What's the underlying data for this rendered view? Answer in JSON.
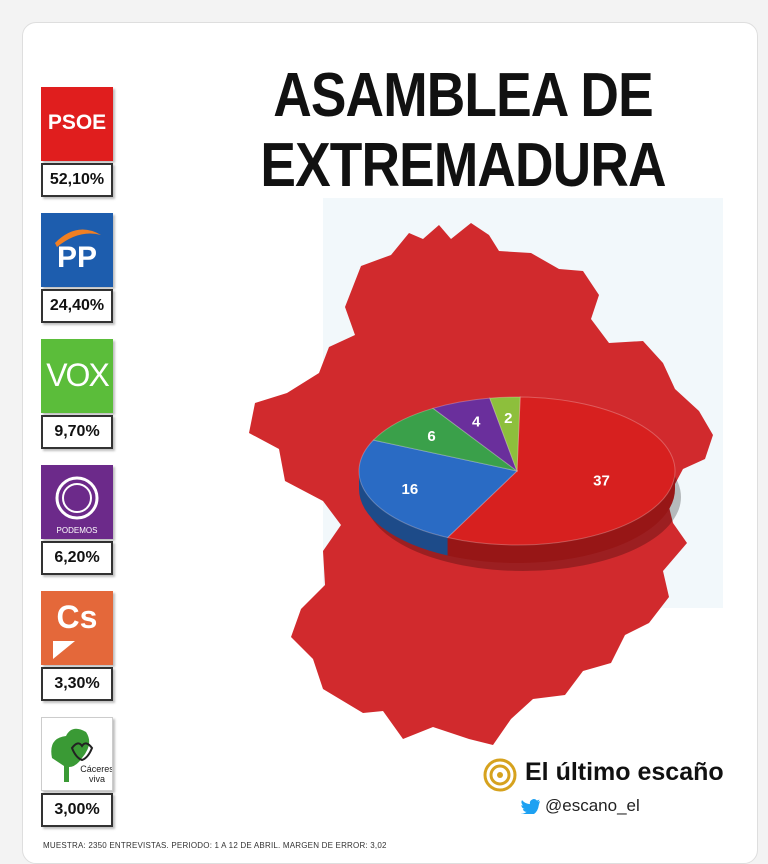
{
  "title": {
    "line1": "ASAMBLEA DE",
    "line2": "EXTREMADURA"
  },
  "parties": [
    {
      "name": "PSOE",
      "pct": "52,10%",
      "color": "#e01e1e",
      "icon": "psoe-logo"
    },
    {
      "name": "PP",
      "pct": "24,40%",
      "color": "#1d5dae",
      "icon": "pp-logo"
    },
    {
      "name": "VOX",
      "pct": "9,70%",
      "color": "#5bbd3a",
      "icon": "vox-logo"
    },
    {
      "name": "PODEMOS",
      "pct": "6,20%",
      "color": "#6c2a8a",
      "icon": "podemos-logo"
    },
    {
      "name": "Cs",
      "pct": "3,30%",
      "color": "#e4683a",
      "icon": "cs-logo"
    },
    {
      "name": "Cáceres viva",
      "pct": "3,00%",
      "color": "#3a9a35",
      "icon": "caceres-viva-logo"
    }
  ],
  "chart_data": {
    "type": "pie",
    "categories": [
      "PSOE",
      "PP",
      "VOX",
      "PODEMOS",
      "Cs"
    ],
    "values": [
      37,
      16,
      6,
      4,
      2
    ],
    "colors": [
      "#d7201f",
      "#2a6bc4",
      "#3aa04a",
      "#6a2f9c",
      "#8dbf3c"
    ],
    "title": "ASAMBLEA DE EXTREMADURA"
  },
  "brand": {
    "name": "El último escaño",
    "handle": "@escano_el",
    "accent": "#d6a21e"
  },
  "footer": "MUESTRA: 2350 ENTREVISTAS. PERIODO: 1 A 12 DE ABRIL. MARGEN DE ERROR: 3,02"
}
